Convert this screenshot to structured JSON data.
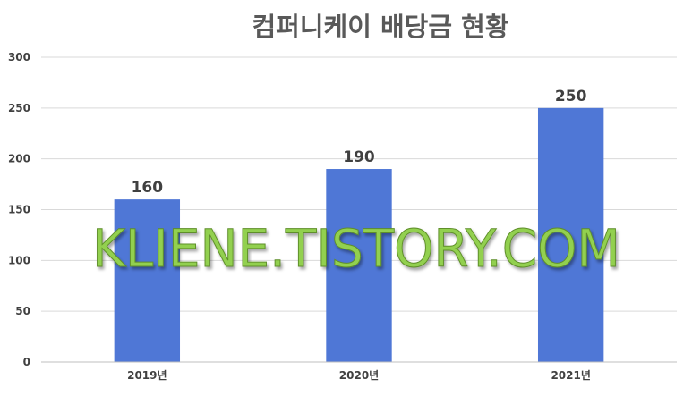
{
  "chart_data": {
    "type": "bar",
    "title": "컴퍼니케이 배당금 현황",
    "categories": [
      "2019년",
      "2020년",
      "2021년"
    ],
    "values": [
      160,
      190,
      250
    ],
    "data_labels": [
      "160",
      "190",
      "250"
    ],
    "yticks": [
      "0",
      "50",
      "100",
      "150",
      "200",
      "250",
      "300"
    ],
    "ylim": [
      0,
      300
    ],
    "xlabel": "",
    "ylabel": "",
    "grid": true,
    "legend": "none",
    "bar_color": "#4f77d6",
    "grid_color": "#d9d9d9",
    "text_color": "#404040",
    "title_color": "#595959"
  },
  "watermark": {
    "text": "KLIENE.TISTORY.COM",
    "color": "#92d050"
  }
}
